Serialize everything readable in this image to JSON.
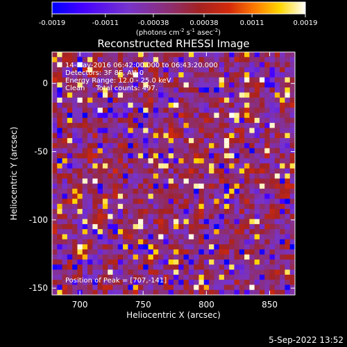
{
  "chart_data": {
    "type": "heatmap",
    "title": "Reconstructed RHESSI Image",
    "xlabel": "Heliocentric X (arcsec)",
    "ylabel": "Heliocentric Y (arcsec)",
    "xlim": [
      678,
      870
    ],
    "ylim": [
      -155,
      23
    ],
    "xticks": [
      700,
      750,
      800,
      850
    ],
    "yticks": [
      0,
      -50,
      -100,
      -150
    ],
    "colorbar": {
      "ticks": [
        "-0.0019",
        "-0.0011",
        "-0.00038",
        "0.00038",
        "0.0011",
        "0.0019"
      ],
      "tick_values": [
        -0.0019,
        -0.0011,
        -0.00038,
        0.00038,
        0.0011,
        0.0019
      ],
      "range": [
        -0.0019,
        0.0019
      ],
      "colormap": [
        "#0000ff",
        "#4400ff",
        "#7733cc",
        "#8e2e6e",
        "#a32222",
        "#d42a0b",
        "#ff7a00",
        "#ffd700",
        "#ffffff"
      ],
      "unit_prefix": "(photons cm",
      "unit_exp1": "-2",
      "unit_mid1": " s",
      "unit_exp2": "-1",
      "unit_mid2": " asec",
      "unit_exp3": "-2",
      "unit_suffix": ")"
    },
    "annotations": [
      "14-May-2016 06:42:00.000 to 06:43:20.000",
      "Detectors: 3F 8F, Att 0",
      "Energy Range: 12.0 - 25.0 keV",
      "Clean     Total counts: 497."
    ],
    "peak_label": "Position of Peak = [707,-141]",
    "peak_position": [
      707,
      -141
    ],
    "pixel_size_arcsec": 4
  },
  "footer": {
    "date": "5-Sep-2022 13:52"
  }
}
